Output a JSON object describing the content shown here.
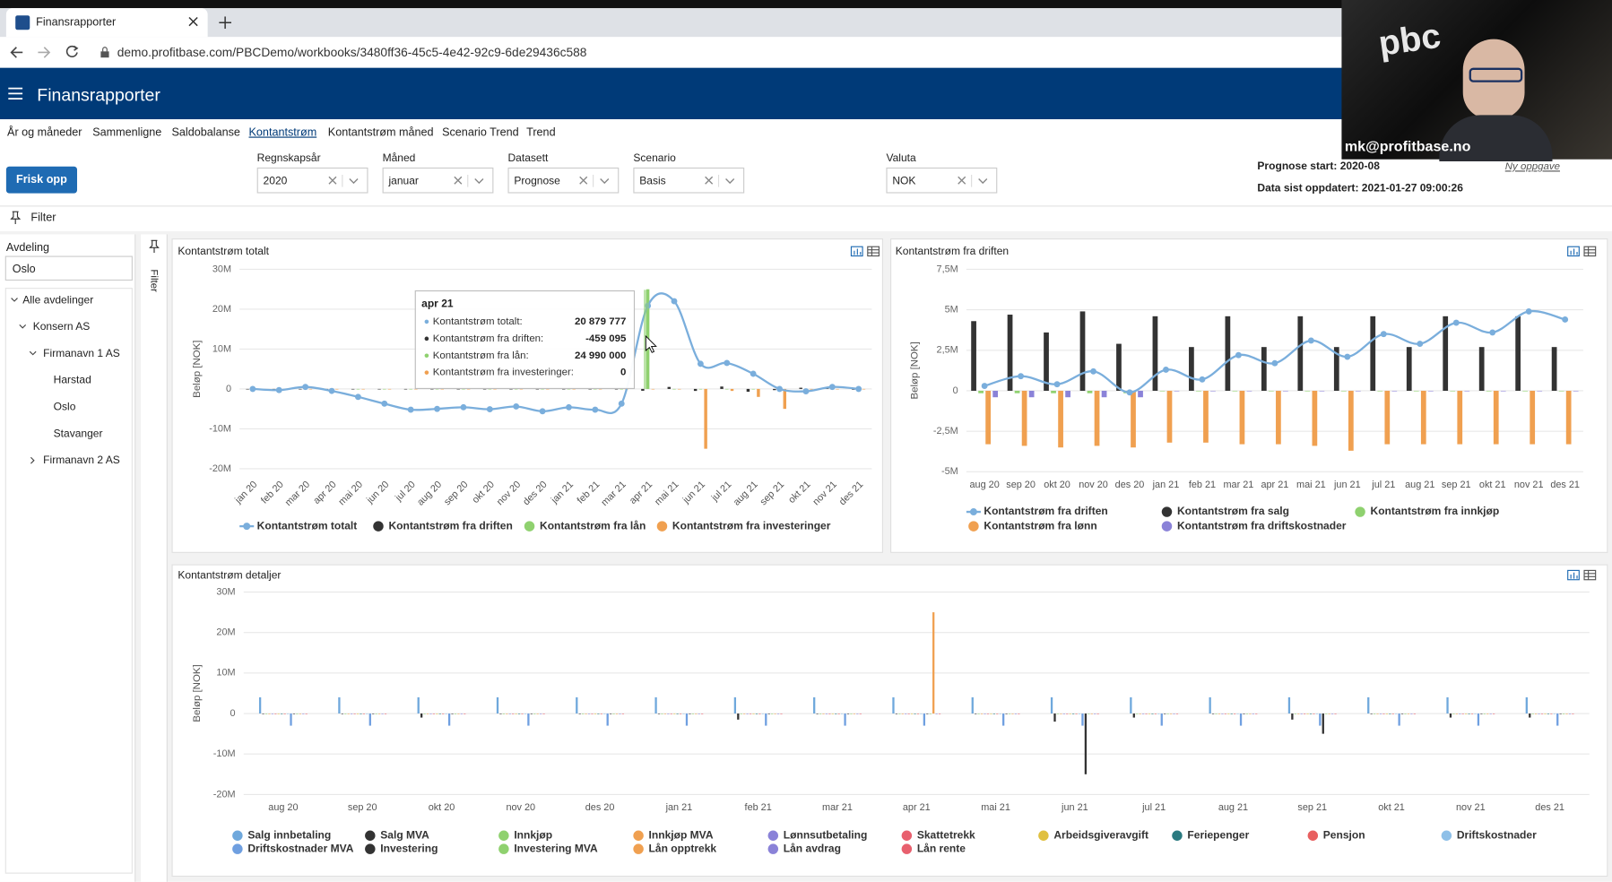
{
  "browser": {
    "tab_title": "Finansrapporter",
    "url": "demo.profitbase.com/PBCDemo/workbooks/3480ff36-45c5-4e42-92c9-6de29436c588"
  },
  "app": {
    "title": "Finansrapporter",
    "tabs": [
      "År og måneder",
      "Sammenligne",
      "Saldobalanse",
      "Kontantstrøm",
      "Kontantstrøm måned",
      "Scenario Trend",
      "Trend"
    ],
    "refresh_button": "Frisk opp",
    "filter_bar": "Filter"
  },
  "filters": [
    {
      "label": "Regnskapsår",
      "value": "2020"
    },
    {
      "label": "Måned",
      "value": "januar"
    },
    {
      "label": "Datasett",
      "value": "Prognose"
    },
    {
      "label": "Scenario",
      "value": "Basis"
    },
    {
      "label": "Valuta",
      "value": "NOK"
    }
  ],
  "info": {
    "forecast_start": "Prognose start: 2020-08",
    "last_updated": "Data sist oppdatert: 2021-01-27 09:00:26",
    "new_task": "Ny oppgave"
  },
  "sidebar": {
    "title": "Avdeling",
    "search": "Oslo",
    "side_tab": "Filter",
    "tree": [
      "Alle avdelinger",
      "Konsern AS",
      "Firmanavn 1 AS",
      "Harstad",
      "Oslo",
      "Stavanger",
      "Firmanavn 2 AS"
    ]
  },
  "webcam": {
    "logo": "pbc",
    "email": "mk@profitbase.no"
  },
  "chart_data": [
    {
      "type": "combo",
      "title": "Kontantstrøm totalt",
      "y_label": "Beløp [NOK]",
      "categories": [
        "jan 20",
        "feb 20",
        "mar 20",
        "apr 20",
        "mai 20",
        "jun 20",
        "jul 20",
        "aug 20",
        "sep 20",
        "okt 20",
        "nov 20",
        "des 20",
        "jan 21",
        "feb 21",
        "mar 21",
        "apr 21",
        "mai 21",
        "jun 21",
        "jul 21",
        "aug 21",
        "sep 21",
        "okt 21",
        "nov 21",
        "des 21"
      ],
      "ylim": [
        -20000000,
        30000000
      ],
      "yticks": [
        {
          "value": -20000000,
          "label": "-20M"
        },
        {
          "value": -10000000,
          "label": "-10M"
        },
        0,
        {
          "value": 10000000,
          "label": "10M"
        },
        {
          "value": 20000000,
          "label": "20M"
        },
        {
          "value": 30000000,
          "label": "30M"
        }
      ],
      "grid": true,
      "tooltip_labels": [
        "Kontantstrøm totalt:",
        "Kontantstrøm fra driften:",
        "Kontantstrøm fra lån:",
        "Kontantstrøm fra investeringer:"
      ],
      "series": [
        {
          "name": "Kontantstrøm totalt",
          "type": "line",
          "color": "#7aaedc",
          "values": [
            0,
            -300000,
            500000,
            -500000,
            -2000000,
            -3700000,
            -5200000,
            -5000000,
            -4600000,
            -5100000,
            -4400000,
            -5600000,
            -4600000,
            -5200000,
            -3700000,
            20879777,
            22000000,
            6300000,
            6500000,
            3800000,
            0,
            -600000,
            500000,
            0
          ],
          "value_labels": [
            null,
            null,
            null,
            null,
            null,
            null,
            null,
            null,
            null,
            null,
            null,
            null,
            null,
            null,
            null,
            "20 879 777",
            null,
            null,
            null,
            null,
            null,
            null,
            null,
            null
          ]
        },
        {
          "name": "Kontantstrøm fra driften",
          "type": "bar",
          "color": "#333333",
          "values": [
            0,
            0,
            0,
            0,
            0,
            0,
            0,
            0,
            0,
            0,
            0,
            0,
            0,
            0,
            0,
            -459095,
            500000,
            -500000,
            600000,
            -700000,
            -300000,
            300000,
            200000,
            -200000
          ],
          "value_labels": [
            null,
            null,
            null,
            null,
            null,
            null,
            null,
            null,
            null,
            null,
            null,
            null,
            null,
            null,
            null,
            "-459 095",
            null,
            null,
            null,
            null,
            null,
            null,
            null,
            null
          ]
        },
        {
          "name": "Kontantstrøm fra lån",
          "type": "bar",
          "color": "#8fd16f",
          "values": [
            0,
            0,
            0,
            0,
            0,
            0,
            0,
            0,
            0,
            0,
            0,
            0,
            0,
            0,
            0,
            24990000,
            0,
            0,
            0,
            0,
            0,
            0,
            0,
            0
          ],
          "value_labels": [
            null,
            null,
            null,
            null,
            null,
            null,
            null,
            null,
            null,
            null,
            null,
            null,
            null,
            null,
            null,
            "24 990 000",
            null,
            null,
            null,
            null,
            null,
            null,
            null,
            null
          ]
        },
        {
          "name": "Kontantstrøm fra investeringer",
          "type": "bar",
          "color": "#f0a050",
          "values": [
            0,
            0,
            0,
            0,
            0,
            0,
            0,
            0,
            0,
            0,
            0,
            0,
            0,
            0,
            0,
            0,
            0,
            -15000000,
            -500000,
            -2000000,
            -5000000,
            0,
            0,
            0
          ],
          "value_labels": [
            null,
            null,
            null,
            null,
            null,
            null,
            null,
            null,
            null,
            null,
            null,
            null,
            null,
            null,
            null,
            "0",
            null,
            null,
            null,
            null,
            null,
            null,
            null,
            null
          ]
        }
      ]
    },
    {
      "type": "combo",
      "title": "Kontantstrøm fra driften",
      "y_label": "Beløp [NOK]",
      "categories": [
        "aug 20",
        "sep 20",
        "okt 20",
        "nov 20",
        "des 20",
        "jan 21",
        "feb 21",
        "mar 21",
        "apr 21",
        "mai 21",
        "jun 21",
        "jul 21",
        "aug 21",
        "sep 21",
        "okt 21",
        "nov 21",
        "des 21"
      ],
      "ylim": [
        -5000000,
        7500000
      ],
      "yticks": [
        {
          "value": -5000000,
          "label": "-5M"
        },
        {
          "value": -2500000,
          "label": "-2,5M"
        },
        0,
        {
          "value": 2500000,
          "label": "2,5M"
        },
        {
          "value": 5000000,
          "label": "5M"
        },
        {
          "value": 7500000,
          "label": "7,5M"
        }
      ],
      "grid": true,
      "series": [
        {
          "name": "Kontantstrøm fra driften",
          "type": "line",
          "color": "#7aaedc",
          "values": [
            300000,
            900000,
            400000,
            1200000,
            -100000,
            1300000,
            700000,
            2200000,
            1700000,
            3100000,
            2100000,
            3500000,
            2900000,
            4200000,
            3600000,
            4900000,
            4400000
          ]
        },
        {
          "name": "Kontantstrøm fra salg",
          "type": "bar",
          "color": "#333333",
          "values": [
            4300000,
            4700000,
            3600000,
            4900000,
            2900000,
            4600000,
            2700000,
            4600000,
            2700000,
            4600000,
            2700000,
            4600000,
            2700000,
            4600000,
            2700000,
            4600000,
            2700000
          ]
        },
        {
          "name": "Kontantstrøm fra innkjøp",
          "type": "bar",
          "color": "#8fd16f",
          "values": [
            -150000,
            -150000,
            -150000,
            -150000,
            -150000,
            0,
            0,
            0,
            0,
            0,
            0,
            0,
            0,
            0,
            0,
            0,
            0
          ]
        },
        {
          "name": "Kontantstrøm fra lønn",
          "type": "bar",
          "color": "#f0a050",
          "values": [
            -3300000,
            -3400000,
            -3500000,
            -3400000,
            -3500000,
            -3200000,
            -3200000,
            -3300000,
            -3300000,
            -3400000,
            -3700000,
            -3300000,
            -3300000,
            -3300000,
            -3300000,
            -3300000,
            -3300000
          ]
        },
        {
          "name": "Kontantstrøm fra driftskostnader",
          "type": "bar",
          "color": "#8a82d8",
          "values": [
            -400000,
            -400000,
            -400000,
            -400000,
            -400000,
            0,
            0,
            0,
            0,
            0,
            0,
            0,
            0,
            0,
            0,
            0,
            0
          ]
        }
      ]
    },
    {
      "type": "combo",
      "title": "Kontantstrøm detaljer",
      "y_label": "Beløp [NOK]",
      "categories": [
        "aug 20",
        "sep 20",
        "okt 20",
        "nov 20",
        "des 20",
        "jan 21",
        "feb 21",
        "mar 21",
        "apr 21",
        "mai 21",
        "jun 21",
        "jul 21",
        "aug 21",
        "sep 21",
        "okt 21",
        "nov 21",
        "des 21"
      ],
      "ylim": [
        -20000000,
        30000000
      ],
      "yticks": [
        {
          "value": -20000000,
          "label": "-20M"
        },
        {
          "value": -10000000,
          "label": "-10M"
        },
        0,
        {
          "value": 10000000,
          "label": "10M"
        },
        {
          "value": 20000000,
          "label": "20M"
        },
        {
          "value": 30000000,
          "label": "30M"
        }
      ],
      "grid": true,
      "series": [
        {
          "name": "Salg innbetaling",
          "type": "bar",
          "color": "#6fa8dc",
          "values": [
            4000000,
            4000000,
            4000000,
            4000000,
            4000000,
            4000000,
            4000000,
            4000000,
            4000000,
            4000000,
            4000000,
            4000000,
            4000000,
            4000000,
            4000000,
            4000000,
            4000000
          ]
        },
        {
          "name": "Salg MVA",
          "type": "bar",
          "color": "#333333",
          "values": [
            0,
            0,
            -1000000,
            0,
            0,
            0,
            -1500000,
            0,
            0,
            0,
            -2000000,
            -1000000,
            0,
            -1500000,
            0,
            -1000000,
            -1000000
          ]
        },
        {
          "name": "Innkjøp",
          "type": "bar",
          "color": "#8fd16f",
          "values": [
            0,
            0,
            0,
            0,
            0,
            0,
            0,
            0,
            0,
            0,
            0,
            0,
            0,
            0,
            0,
            0,
            0
          ]
        },
        {
          "name": "Innkjøp MVA",
          "type": "bar",
          "color": "#f0a050",
          "values": [
            0,
            0,
            0,
            0,
            0,
            0,
            0,
            0,
            0,
            0,
            0,
            0,
            0,
            0,
            0,
            0,
            0
          ]
        },
        {
          "name": "Lønnsutbetaling",
          "type": "bar",
          "color": "#8a82d8",
          "values": [
            0,
            0,
            0,
            0,
            0,
            0,
            0,
            0,
            0,
            0,
            0,
            0,
            0,
            0,
            0,
            0,
            0
          ]
        },
        {
          "name": "Skattetrekk",
          "type": "bar",
          "color": "#e8606e",
          "values": [
            0,
            0,
            0,
            0,
            0,
            0,
            0,
            0,
            0,
            0,
            0,
            0,
            0,
            0,
            0,
            0,
            0
          ]
        },
        {
          "name": "Arbeidsgiveravgift",
          "type": "bar",
          "color": "#e0c040",
          "values": [
            0,
            0,
            0,
            0,
            0,
            0,
            0,
            0,
            0,
            0,
            0,
            0,
            0,
            0,
            0,
            0,
            0
          ]
        },
        {
          "name": "Feriepenger",
          "type": "bar",
          "color": "#2a7a80",
          "values": [
            0,
            0,
            0,
            0,
            0,
            0,
            0,
            0,
            0,
            0,
            0,
            0,
            0,
            0,
            0,
            0,
            0
          ]
        },
        {
          "name": "Pensjon",
          "type": "bar",
          "color": "#e86060",
          "values": [
            0,
            0,
            0,
            0,
            0,
            0,
            0,
            0,
            0,
            0,
            0,
            0,
            0,
            0,
            0,
            0,
            0
          ]
        },
        {
          "name": "Driftskostnader",
          "type": "bar",
          "color": "#8ec0e8",
          "values": [
            0,
            0,
            0,
            0,
            0,
            0,
            0,
            0,
            0,
            0,
            0,
            0,
            0,
            0,
            0,
            0,
            0
          ]
        },
        {
          "name": "Driftskostnader MVA",
          "type": "bar",
          "color": "#6f9fe0",
          "values": [
            -3000000,
            -3000000,
            -3000000,
            -3000000,
            -3000000,
            -3000000,
            -3000000,
            -3000000,
            -3000000,
            -3000000,
            -3000000,
            -3000000,
            -3000000,
            -3000000,
            -3000000,
            -3000000,
            -3000000
          ]
        },
        {
          "name": "Investering",
          "type": "bar",
          "color": "#333333",
          "values": [
            0,
            0,
            0,
            0,
            0,
            0,
            0,
            0,
            0,
            0,
            -15000000,
            0,
            0,
            -5000000,
            0,
            0,
            0
          ]
        },
        {
          "name": "Investering MVA",
          "type": "bar",
          "color": "#8fd16f",
          "values": [
            0,
            0,
            0,
            0,
            0,
            0,
            0,
            0,
            0,
            0,
            0,
            0,
            0,
            0,
            0,
            0,
            0
          ]
        },
        {
          "name": "Lån opptrekk",
          "type": "bar",
          "color": "#f0a050",
          "values": [
            0,
            0,
            0,
            0,
            0,
            0,
            0,
            0,
            25000000,
            0,
            0,
            0,
            0,
            0,
            0,
            0,
            0
          ]
        },
        {
          "name": "Lån avdrag",
          "type": "bar",
          "color": "#8a82d8",
          "values": [
            0,
            0,
            0,
            0,
            0,
            0,
            0,
            0,
            0,
            0,
            0,
            0,
            0,
            0,
            0,
            0,
            0
          ]
        },
        {
          "name": "Lån rente",
          "type": "bar",
          "color": "#e8606e",
          "values": [
            0,
            0,
            0,
            0,
            0,
            0,
            0,
            0,
            0,
            0,
            0,
            0,
            0,
            0,
            0,
            0,
            0
          ]
        }
      ]
    }
  ]
}
